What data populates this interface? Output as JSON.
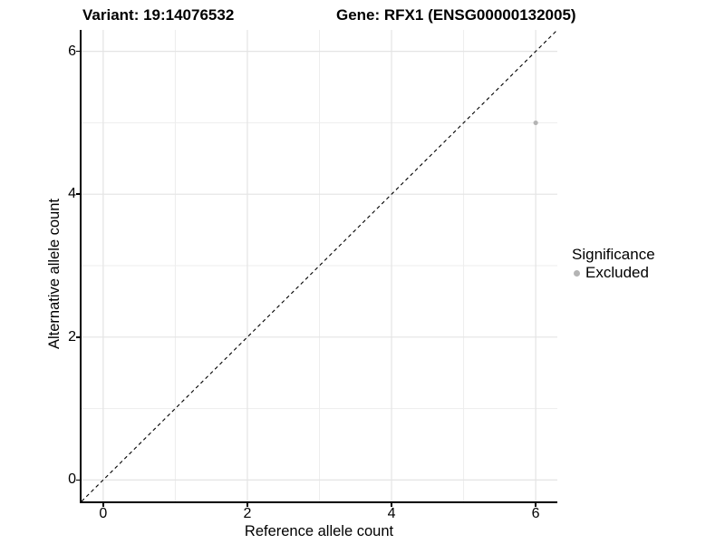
{
  "chart_data": {
    "type": "scatter",
    "titles": {
      "variant": "Variant: 19:14076532",
      "gene": "Gene: RFX1 (ENSG00000132005)"
    },
    "xlabel": "Reference allele count",
    "ylabel": "Alternative allele count",
    "xlim": [
      -0.3,
      6.3
    ],
    "ylim": [
      -0.3,
      6.3
    ],
    "x_major_ticks": [
      0,
      2,
      4,
      6
    ],
    "y_major_ticks": [
      0,
      2,
      4,
      6
    ],
    "x_minor_gridlines": [
      1,
      3,
      5
    ],
    "y_minor_gridlines": [
      1,
      3,
      5
    ],
    "grid": true,
    "identity_line": {
      "slope": 1,
      "intercept": 0,
      "style": "dashed"
    },
    "series": [
      {
        "name": "Excluded",
        "color": "#b4b4b4",
        "points": [
          [
            6,
            5
          ]
        ]
      }
    ],
    "legend": {
      "title": "Significance",
      "position": "right",
      "items": [
        {
          "label": "Excluded",
          "color": "#b4b4b4"
        }
      ]
    },
    "colors": {
      "background": "#ffffff",
      "major_grid": "#e4e4e4",
      "minor_grid": "#ededed",
      "axis_line": "#000000",
      "dashed_line": "#000000",
      "text": "#000000"
    }
  }
}
